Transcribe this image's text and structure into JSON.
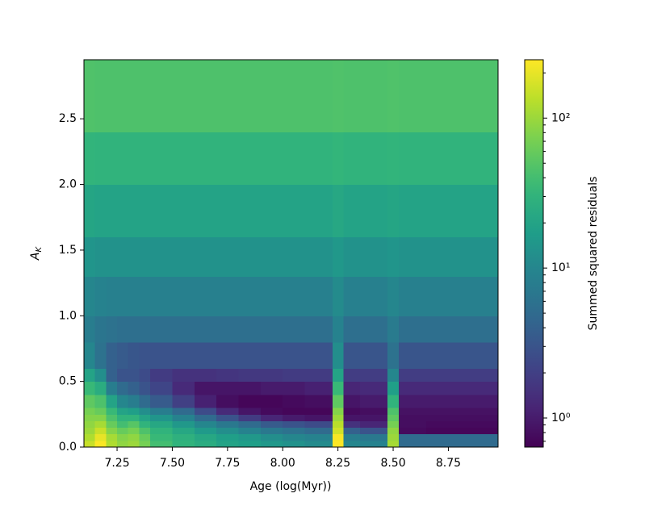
{
  "chart_data": {
    "type": "heatmap",
    "x_label": "Age (log(Myr))",
    "y_label": "A_K",
    "colorbar_label": "Summed squared residuals",
    "colormap": "viridis",
    "color_scale": "log",
    "xlim": [
      7.1,
      8.975
    ],
    "ylim": [
      0,
      2.95
    ],
    "clim": [
      0.64,
      245
    ],
    "xticks": [
      7.25,
      {
        "value": 7.5,
        "label": "7.50"
      },
      7.75,
      {
        "value": 8.0,
        "label": "8.00"
      },
      8.25,
      {
        "value": 8.5,
        "label": "8.50"
      },
      8.75
    ],
    "yticks": [
      {
        "value": 0,
        "label": "0.0"
      },
      0.5,
      {
        "value": 1,
        "label": "1.0"
      },
      1.5,
      {
        "value": 2,
        "label": "2.0"
      },
      2.5
    ],
    "cticks": [
      {
        "value": 1,
        "label": "10⁰"
      },
      {
        "value": 10,
        "label": "10¹"
      },
      {
        "value": 100,
        "label": "10²"
      }
    ],
    "x_bins": [
      7.1,
      7.15,
      7.2,
      7.25,
      7.3,
      7.35,
      7.4,
      7.5,
      7.6,
      7.7,
      7.8,
      7.9,
      8.0,
      8.1,
      8.225,
      8.275,
      8.35,
      8.475,
      8.525,
      8.65,
      8.8,
      8.975
    ],
    "y_bins": [
      0,
      0.05,
      0.1,
      0.15,
      0.2,
      0.25,
      0.3,
      0.4,
      0.5,
      0.6,
      0.8,
      1.0,
      1.3,
      1.6,
      2.0,
      2.4,
      2.95
    ],
    "values": [
      [
        150,
        240,
        120,
        90,
        100,
        70,
        40,
        30,
        25,
        20,
        18,
        15,
        13,
        11,
        240,
        10,
        9,
        110,
        5,
        5,
        5
      ],
      [
        120,
        200,
        110,
        80,
        90,
        60,
        35,
        28,
        22,
        18,
        15,
        12,
        10,
        9,
        230,
        8,
        7,
        100,
        5,
        5,
        5
      ],
      [
        100,
        150,
        80,
        60,
        70,
        45,
        30,
        22,
        16,
        12,
        9,
        7,
        6,
        5,
        160,
        4,
        3,
        90,
        0.75,
        0.7,
        0.7
      ],
      [
        90,
        110,
        60,
        40,
        50,
        30,
        22,
        15,
        10,
        7,
        5,
        3.5,
        3,
        2.5,
        130,
        1.5,
        1.2,
        70,
        0.8,
        0.75,
        0.75
      ],
      [
        80,
        80,
        45,
        30,
        30,
        20,
        14,
        9,
        5,
        3,
        1.8,
        1.2,
        1.0,
        0.9,
        100,
        0.9,
        0.9,
        55,
        0.8,
        0.8,
        0.8
      ],
      [
        70,
        60,
        35,
        20,
        18,
        12,
        8,
        5,
        2.5,
        1.3,
        0.9,
        0.75,
        0.7,
        0.7,
        80,
        0.75,
        0.8,
        45,
        0.85,
        0.85,
        0.85
      ],
      [
        55,
        45,
        20,
        10,
        8,
        5,
        3.5,
        2,
        1.1,
        0.8,
        0.7,
        0.7,
        0.75,
        0.8,
        55,
        0.9,
        1.0,
        30,
        1.0,
        1.0,
        1.0
      ],
      [
        35,
        25,
        8,
        5,
        4,
        3,
        2.2,
        1.3,
        0.9,
        0.9,
        0.9,
        1.0,
        1.0,
        1.1,
        35,
        1.2,
        1.3,
        18,
        1.3,
        1.3,
        1.3
      ],
      [
        20,
        12,
        4,
        3,
        3,
        2.5,
        1.8,
        1.5,
        1.5,
        1.6,
        1.7,
        1.7,
        1.8,
        1.8,
        20,
        1.9,
        1.9,
        10,
        1.9,
        1.9,
        1.9
      ],
      [
        10,
        6,
        4,
        3.5,
        3.2,
        3,
        3,
        3,
        3,
        3,
        3,
        3,
        3,
        3,
        12,
        3.1,
        3.1,
        6,
        3.1,
        3.1,
        3.1
      ],
      [
        8,
        6.5,
        6,
        5.5,
        5.5,
        5.5,
        5.5,
        5.5,
        5.5,
        5.5,
        5.5,
        5.5,
        5.5,
        5.5,
        9,
        5.5,
        5.5,
        7.5,
        5.5,
        5.5,
        5.5
      ],
      [
        10,
        9,
        8.5,
        8.5,
        8.5,
        8.5,
        8.5,
        8.5,
        8.5,
        8.5,
        8.5,
        8.5,
        8.5,
        8.5,
        11,
        8.5,
        8.5,
        10,
        8.5,
        8.5,
        8.5
      ],
      [
        14,
        13,
        13,
        13,
        13,
        13,
        13,
        13,
        13,
        13,
        13,
        13,
        13,
        13,
        15,
        13,
        13,
        14,
        13,
        13,
        13
      ],
      [
        21,
        20,
        20,
        20,
        20,
        20,
        20,
        20,
        20,
        20,
        20,
        20,
        20,
        20,
        22,
        20,
        20,
        21,
        20,
        20,
        20
      ],
      [
        31,
        30,
        30,
        30,
        30,
        30,
        30,
        30,
        30,
        30,
        30,
        30,
        30,
        30,
        32,
        30,
        30,
        31,
        30,
        30,
        30
      ],
      [
        46,
        45,
        45,
        45,
        45,
        45,
        45,
        45,
        45,
        45,
        45,
        45,
        45,
        45,
        46,
        45,
        45,
        46,
        45,
        45,
        45
      ]
    ]
  }
}
